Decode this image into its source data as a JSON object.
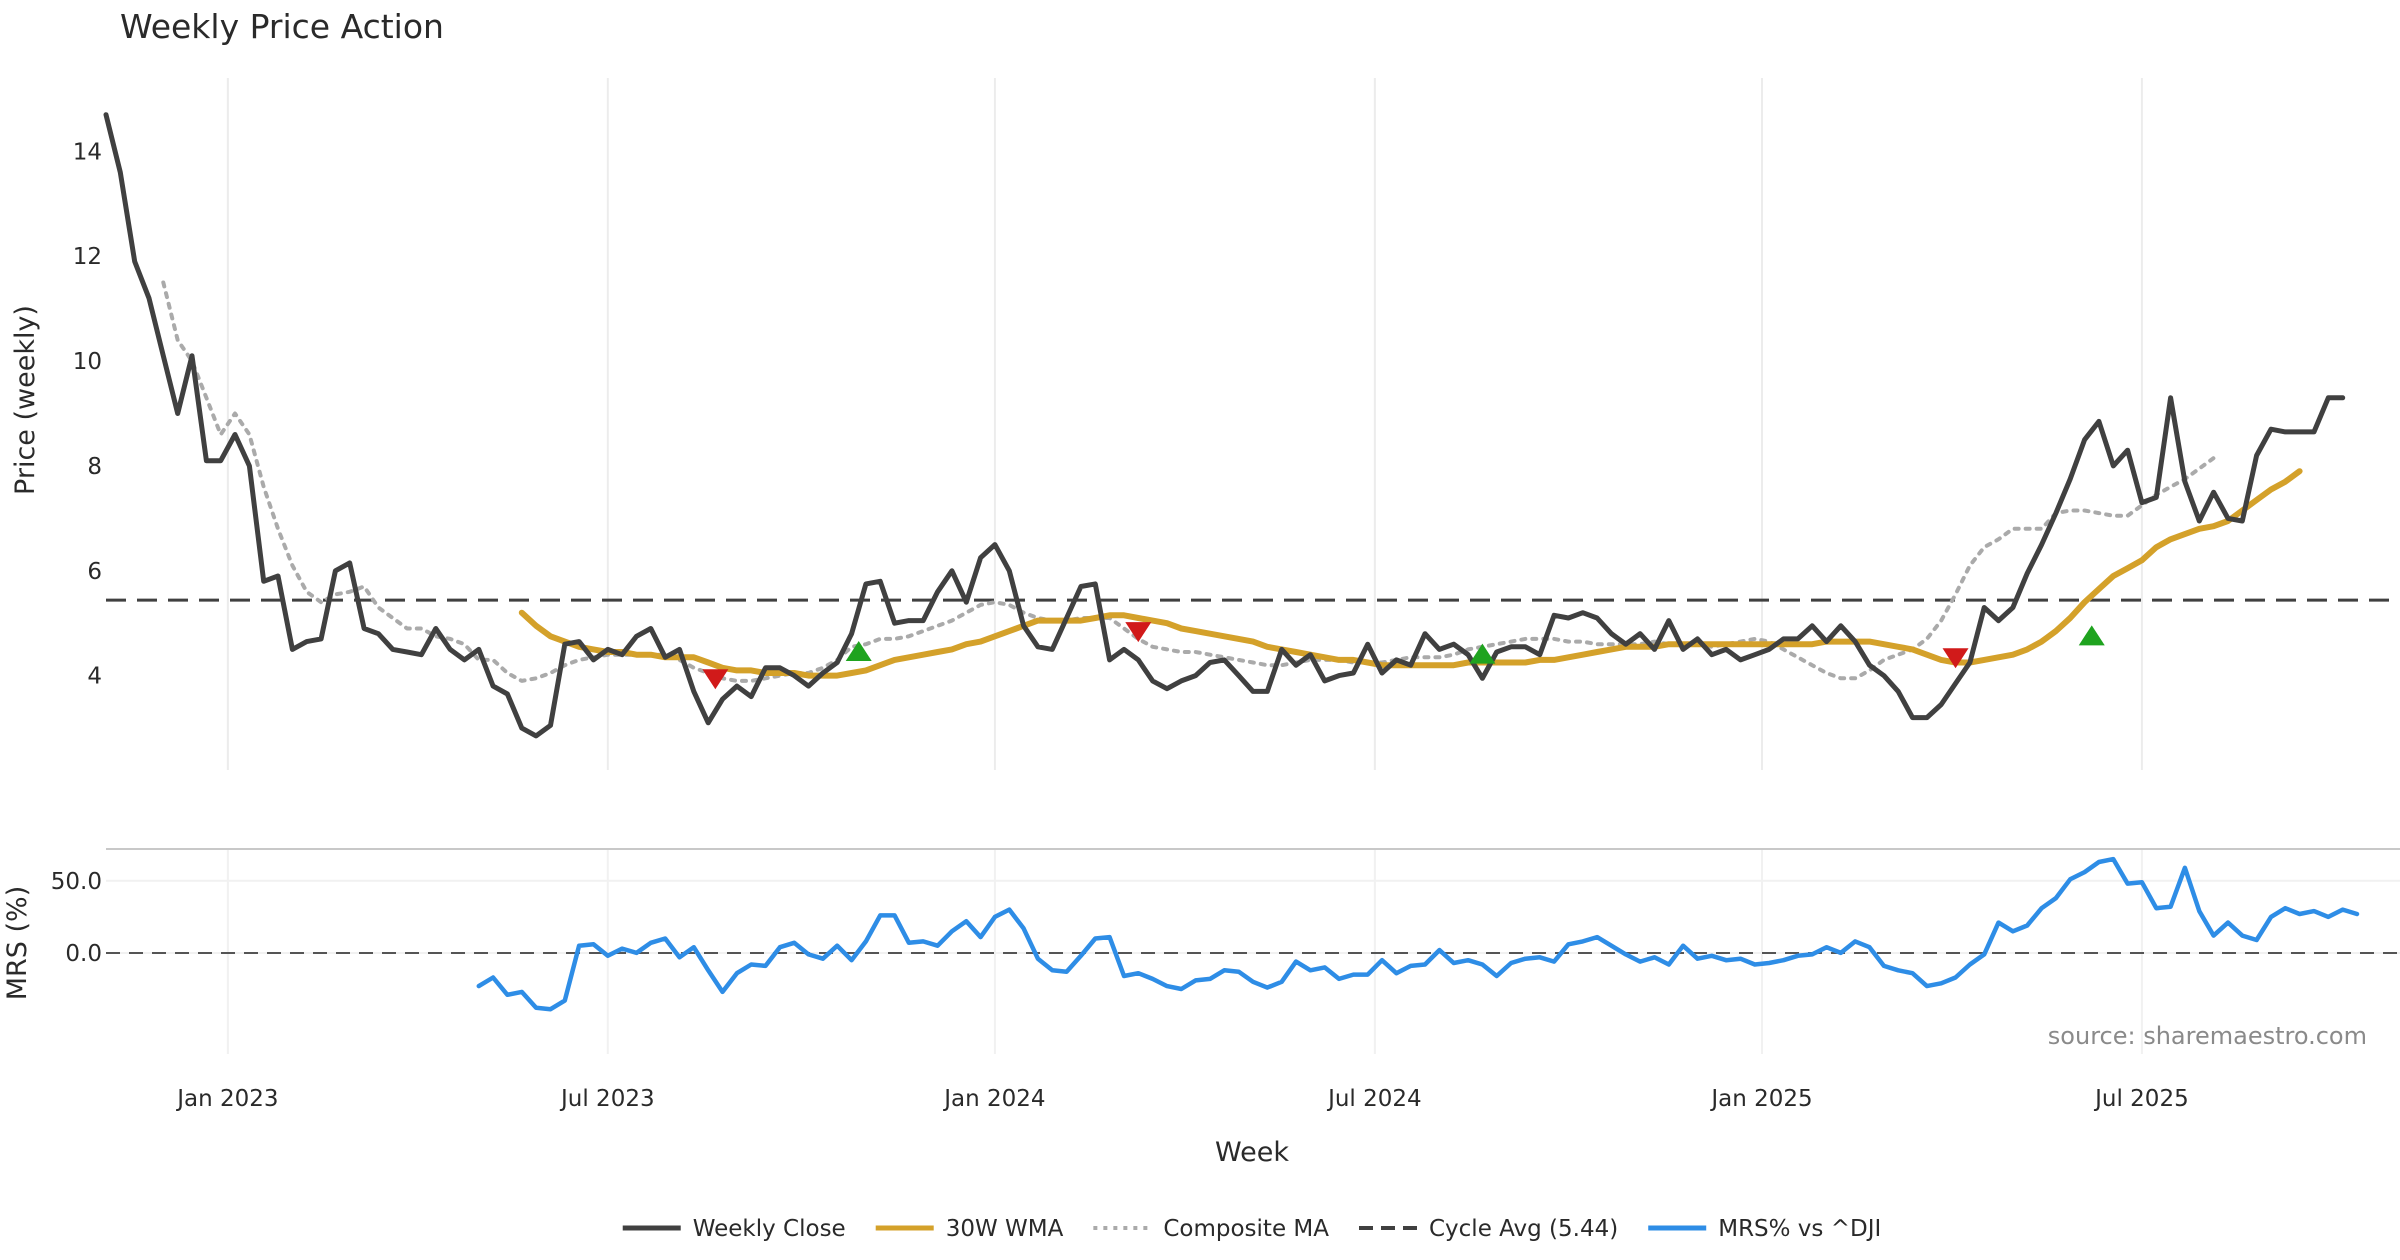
{
  "chart_data": {
    "type": "line",
    "title": "Weekly Price Action",
    "source": "source: sharemaestro.com",
    "xlabel": "Week",
    "x_ticks": [
      {
        "label": "Jan 2023",
        "index": 8.5
      },
      {
        "label": "Jul 2023",
        "index": 35
      },
      {
        "label": "Jan 2024",
        "index": 62
      },
      {
        "label": "Jul 2024",
        "index": 88.5
      },
      {
        "label": "Jan 2025",
        "index": 115.5
      },
      {
        "label": "Jul 2025",
        "index": 142
      }
    ],
    "x_range": [
      0,
      160
    ],
    "price_panel": {
      "ylabel": "Price (weekly)",
      "ylim": [
        2.2,
        15.4
      ],
      "y_ticks": [
        4,
        6,
        8,
        10,
        12,
        14
      ],
      "y_tick_labels": [
        "4",
        "6",
        "8",
        "10",
        "12",
        "14"
      ],
      "cycle_avg": 5.44
    },
    "mrs_panel": {
      "ylabel": "MRS (%)",
      "ylim": [
        -70,
        72
      ],
      "y_ticks": [
        0,
        50
      ],
      "y_tick_labels": [
        "0.0",
        "50.0"
      ]
    },
    "legend": [
      {
        "label": "Weekly Close",
        "color": "#404040",
        "style": "solid"
      },
      {
        "label": "30W WMA",
        "color": "#d4a12a",
        "style": "solid"
      },
      {
        "label": "Composite MA",
        "color": "#aaaaaa",
        "style": "dotted"
      },
      {
        "label": "Cycle Avg (5.44)",
        "color": "#404040",
        "style": "dashed"
      },
      {
        "label": "MRS% vs ^DJI",
        "color": "#2e8de6",
        "style": "solid"
      }
    ],
    "series": [
      {
        "name": "Weekly Close",
        "color": "#404040",
        "start": 0,
        "values": [
          14.7,
          13.6,
          11.9,
          11.2,
          10.1,
          9.0,
          10.1,
          8.1,
          8.1,
          8.6,
          8.0,
          5.8,
          5.9,
          4.5,
          4.65,
          4.7,
          6.0,
          6.15,
          4.9,
          4.8,
          4.5,
          4.45,
          4.4,
          4.9,
          4.5,
          4.3,
          4.5,
          3.8,
          3.65,
          3.0,
          2.85,
          3.05,
          4.6,
          4.65,
          4.3,
          4.5,
          4.4,
          4.75,
          4.9,
          4.35,
          4.5,
          3.7,
          3.1,
          3.55,
          3.8,
          3.6,
          4.15,
          4.15,
          4.0,
          3.8,
          4.05,
          4.25,
          4.8,
          5.75,
          5.8,
          5.0,
          5.05,
          5.05,
          5.6,
          6.0,
          5.4,
          6.25,
          6.5,
          6.0,
          4.95,
          4.55,
          4.5,
          5.1,
          5.7,
          5.75,
          4.3,
          4.5,
          4.3,
          3.9,
          3.75,
          3.9,
          4.0,
          4.25,
          4.3,
          4.0,
          3.7,
          3.7,
          4.5,
          4.2,
          4.4,
          3.9,
          4.0,
          4.05,
          4.6,
          4.05,
          4.3,
          4.2,
          4.8,
          4.5,
          4.6,
          4.4,
          3.95,
          4.45,
          4.55,
          4.55,
          4.4,
          5.15,
          5.1,
          5.2,
          5.1,
          4.8,
          4.6,
          4.8,
          4.5,
          5.05,
          4.5,
          4.7,
          4.4,
          4.5,
          4.3,
          4.4,
          4.5,
          4.7,
          4.7,
          4.95,
          4.65,
          4.95,
          4.65,
          4.2,
          4.0,
          3.7,
          3.2,
          3.2,
          3.45,
          3.85,
          4.25,
          5.3,
          5.05,
          5.3,
          5.95,
          6.5,
          7.1,
          7.75,
          8.5,
          8.85,
          8.0,
          8.3,
          7.3,
          7.4,
          9.3,
          7.7,
          6.95,
          7.5,
          7.0,
          6.95,
          8.2,
          8.7,
          8.65,
          8.65,
          8.65,
          9.3,
          9.3
        ]
      },
      {
        "name": "30W WMA",
        "color": "#d4a12a",
        "start": 29,
        "values": [
          5.2,
          4.95,
          4.75,
          4.65,
          4.55,
          4.5,
          4.45,
          4.45,
          4.4,
          4.4,
          4.35,
          4.35,
          4.35,
          4.25,
          4.15,
          4.1,
          4.1,
          4.05,
          4.05,
          4.05,
          4.0,
          4.0,
          4.0,
          4.05,
          4.1,
          4.2,
          4.3,
          4.35,
          4.4,
          4.45,
          4.5,
          4.6,
          4.65,
          4.75,
          4.85,
          4.95,
          5.05,
          5.05,
          5.05,
          5.05,
          5.1,
          5.15,
          5.15,
          5.1,
          5.05,
          5.0,
          4.9,
          4.85,
          4.8,
          4.75,
          4.7,
          4.65,
          4.55,
          4.5,
          4.45,
          4.4,
          4.35,
          4.3,
          4.3,
          4.25,
          4.2,
          4.2,
          4.2,
          4.2,
          4.2,
          4.2,
          4.25,
          4.25,
          4.25,
          4.25,
          4.25,
          4.3,
          4.3,
          4.35,
          4.4,
          4.45,
          4.5,
          4.55,
          4.55,
          4.55,
          4.6,
          4.6,
          4.6,
          4.6,
          4.6,
          4.6,
          4.6,
          4.6,
          4.6,
          4.6,
          4.6,
          4.65,
          4.65,
          4.65,
          4.65,
          4.6,
          4.55,
          4.5,
          4.4,
          4.3,
          4.25,
          4.25,
          4.3,
          4.35,
          4.4,
          4.5,
          4.65,
          4.85,
          5.1,
          5.4,
          5.65,
          5.9,
          6.05,
          6.2,
          6.45,
          6.6,
          6.7,
          6.8,
          6.85,
          6.95,
          7.15,
          7.35,
          7.55,
          7.7,
          7.9
        ]
      },
      {
        "name": "Composite MA",
        "color": "#aaaaaa",
        "start": 4,
        "values": [
          11.5,
          10.4,
          10.0,
          9.3,
          8.6,
          9.0,
          8.6,
          7.6,
          6.8,
          6.1,
          5.6,
          5.4,
          5.55,
          5.6,
          5.7,
          5.3,
          5.1,
          4.9,
          4.9,
          4.75,
          4.7,
          4.6,
          4.3,
          4.3,
          4.05,
          3.9,
          3.95,
          4.05,
          4.2,
          4.3,
          4.35,
          4.4,
          4.4,
          4.4,
          4.4,
          4.4,
          4.3,
          4.15,
          4.05,
          3.95,
          3.9,
          3.9,
          3.95,
          4.0,
          4.05,
          4.05,
          4.15,
          4.3,
          4.55,
          4.6,
          4.7,
          4.7,
          4.75,
          4.85,
          4.95,
          5.05,
          5.2,
          5.35,
          5.4,
          5.35,
          5.2,
          5.1,
          5.05,
          5.05,
          5.1,
          5.1,
          5.1,
          4.9,
          4.7,
          4.55,
          4.5,
          4.45,
          4.45,
          4.4,
          4.35,
          4.3,
          4.25,
          4.2,
          4.2,
          4.25,
          4.3,
          4.3,
          4.3,
          4.25,
          4.25,
          4.25,
          4.3,
          4.35,
          4.35,
          4.35,
          4.4,
          4.5,
          4.55,
          4.6,
          4.65,
          4.7,
          4.7,
          4.7,
          4.65,
          4.65,
          4.6,
          4.6,
          4.6,
          4.6,
          4.65,
          4.6,
          4.6,
          4.6,
          4.55,
          4.6,
          4.65,
          4.7,
          4.65,
          4.5,
          4.35,
          4.2,
          4.05,
          3.95,
          3.95,
          4.1,
          4.3,
          4.4,
          4.5,
          4.7,
          5.05,
          5.55,
          6.1,
          6.45,
          6.6,
          6.8,
          6.8,
          6.8,
          7.1,
          7.15,
          7.15,
          7.1,
          7.05,
          7.05,
          7.25,
          7.45,
          7.6,
          7.75,
          7.95,
          8.15
        ]
      },
      {
        "name": "MRS% vs ^DJI",
        "color": "#2e8de6",
        "start": 26,
        "values": [
          -23,
          -17,
          -29,
          -27,
          -38,
          -39,
          -33,
          5,
          6,
          -2,
          3,
          0,
          7,
          10,
          -3,
          4,
          -12,
          -27,
          -14,
          -8,
          -9,
          4,
          7,
          -1,
          -4,
          5,
          -5,
          8,
          26,
          26,
          7,
          8,
          5,
          15,
          22,
          11,
          25,
          30,
          17,
          -4,
          -12,
          -13,
          -2,
          10,
          11,
          -16,
          -14,
          -18,
          -23,
          -25,
          -19,
          -18,
          -12,
          -13,
          -20,
          -24,
          -20,
          -6,
          -12,
          -10,
          -18,
          -15,
          -15,
          -5,
          -14,
          -9,
          -8,
          2,
          -7,
          -5,
          -8,
          -16,
          -7,
          -4,
          -3,
          -6,
          6,
          8,
          11,
          5,
          -1,
          -6,
          -3,
          -8,
          5,
          -4,
          -2,
          -5,
          -4,
          -8,
          -7,
          -5,
          -2,
          -1,
          4,
          0,
          8,
          4,
          -9,
          -12,
          -14,
          -23,
          -21,
          -17,
          -8,
          -1,
          21,
          15,
          19,
          31,
          38,
          51,
          56,
          63,
          65,
          48,
          49,
          31,
          32,
          59,
          29,
          12,
          21,
          12,
          9,
          25,
          31,
          27,
          29,
          25,
          30,
          27
        ]
      }
    ],
    "signals": [
      {
        "type": "sell",
        "index": 42.5,
        "value": 3.95
      },
      {
        "type": "buy",
        "index": 52.5,
        "value": 4.45
      },
      {
        "type": "sell",
        "index": 72,
        "value": 4.85
      },
      {
        "type": "buy",
        "index": 96,
        "value": 4.4
      },
      {
        "type": "sell",
        "index": 129,
        "value": 4.35
      },
      {
        "type": "buy",
        "index": 138.5,
        "value": 4.75
      }
    ]
  }
}
